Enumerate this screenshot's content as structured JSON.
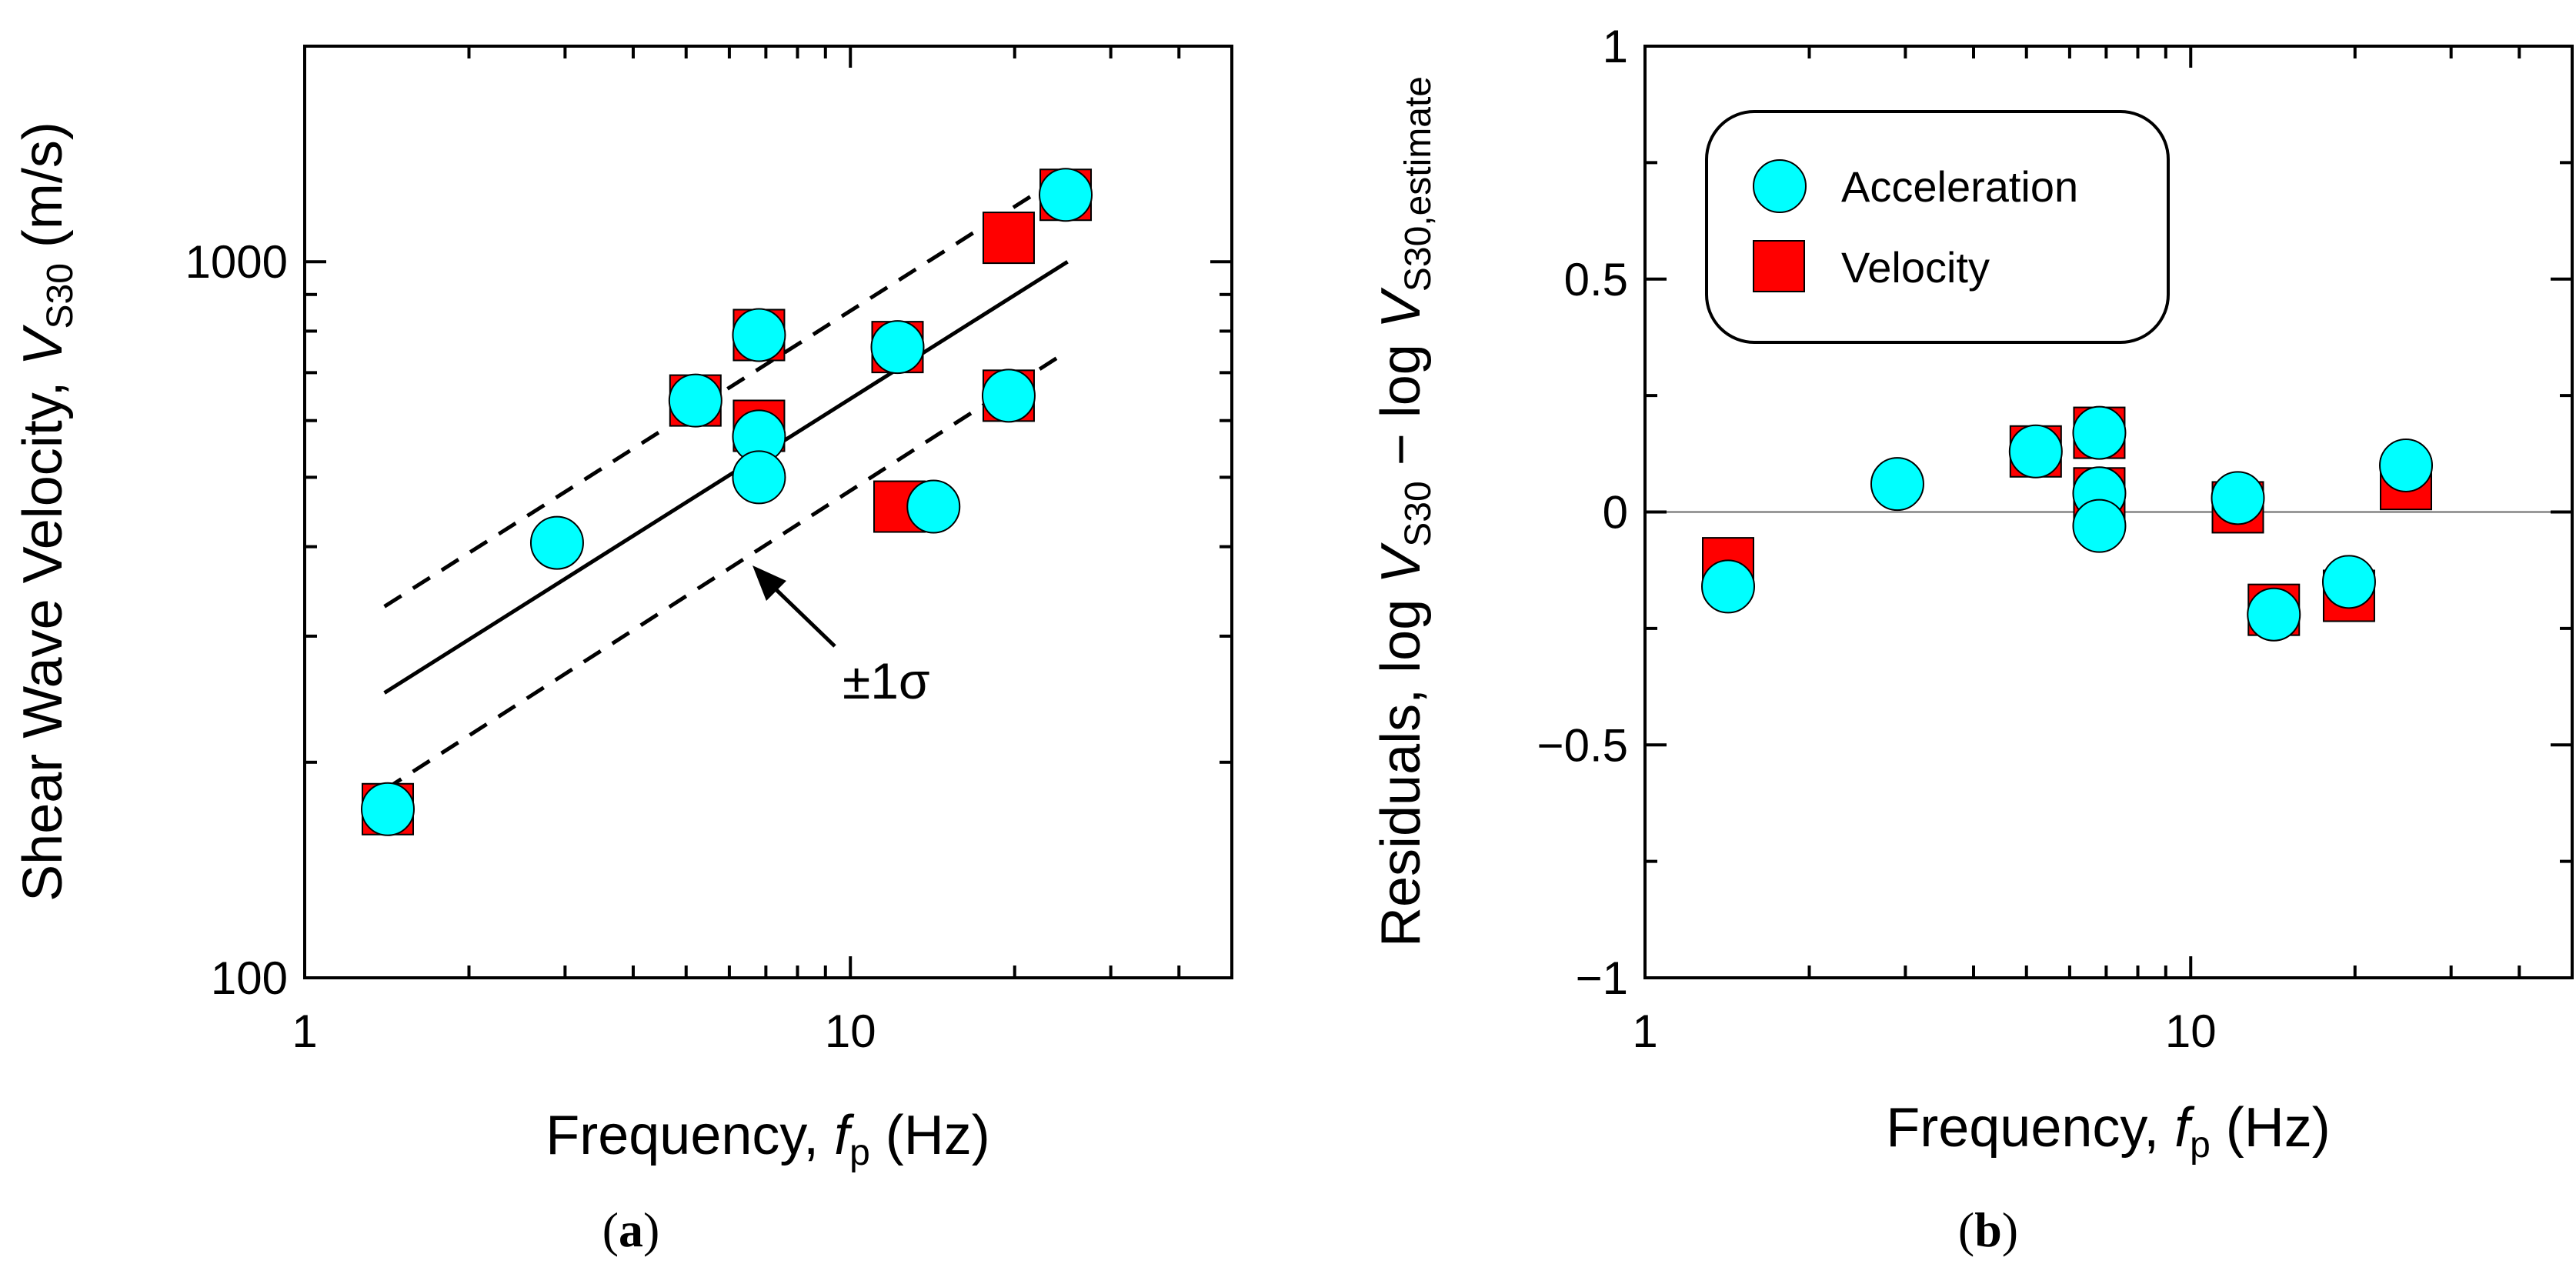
{
  "chart_data": [
    {
      "id": "a",
      "type": "scatter",
      "panel_label_open": "(",
      "panel_label_letter": "a",
      "panel_label_close": ")",
      "xscale": "log",
      "yscale": "log",
      "xlim": [
        1,
        50
      ],
      "ylim": [
        100,
        2000
      ],
      "xlabel_pre": "Frequency, ",
      "xlabel_var": "f",
      "xlabel_sub": "p",
      "xlabel_post": " (Hz)",
      "ylabel_pre": "Shear Wave Velocity,  ",
      "ylabel_var": "V",
      "ylabel_sub": "S30",
      "ylabel_post": " (m/s)",
      "x_ticks": [
        {
          "value": 1,
          "label": "1"
        },
        {
          "value": 10,
          "label": "10"
        }
      ],
      "y_ticks": [
        {
          "value": 100,
          "label": "100"
        },
        {
          "value": 1000,
          "label": "1000"
        }
      ],
      "annotation": "±1σ",
      "fit_line": {
        "x": [
          1.4,
          25
        ],
        "y": [
          250,
          1000
        ]
      },
      "sigma_upper": {
        "x": [
          1.4,
          25
        ],
        "y": [
          330,
          1330
        ]
      },
      "sigma_lower": {
        "x": [
          1.4,
          25
        ],
        "y": [
          183,
          750
        ]
      },
      "series": [
        {
          "name": "Velocity",
          "marker": "square",
          "color": "#ff0000",
          "x": [
            1.42,
            5.2,
            6.8,
            6.8,
            12.2,
            12.3,
            19.5,
            24.8,
            19.5
          ],
          "y": [
            172,
            640,
            790,
            590,
            760,
            455,
            650,
            1240,
            1080
          ]
        },
        {
          "name": "Acceleration",
          "marker": "circle",
          "color": "#00ffff",
          "x": [
            1.42,
            2.9,
            5.2,
            6.8,
            6.8,
            6.8,
            12.2,
            14.2,
            19.5,
            24.8
          ],
          "y": [
            172,
            405,
            640,
            790,
            570,
            500,
            760,
            455,
            650,
            1240
          ]
        }
      ]
    },
    {
      "id": "b",
      "type": "scatter",
      "panel_label_open": "(",
      "panel_label_letter": "b",
      "panel_label_close": ")",
      "xscale": "log",
      "yscale": "linear",
      "xlim": [
        1,
        50
      ],
      "ylim": [
        -1,
        1
      ],
      "xlabel_pre": "Frequency, ",
      "xlabel_var": "f",
      "xlabel_sub": "p",
      "xlabel_post": " (Hz)",
      "ylabel_pre": "Residuals, log ",
      "ylabel_var": "V",
      "ylabel_sub": "S30",
      "ylabel_mid": " − log ",
      "ylabel_var2": "V",
      "ylabel_sub2": "S30,estimate",
      "x_ticks": [
        {
          "value": 1,
          "label": "1"
        },
        {
          "value": 10,
          "label": "10"
        }
      ],
      "y_ticks": [
        {
          "value": -1,
          "label": "−1"
        },
        {
          "value": -0.5,
          "label": "−0.5"
        },
        {
          "value": 0,
          "label": "0"
        },
        {
          "value": 0.5,
          "label": "0.5"
        },
        {
          "value": 1,
          "label": "1"
        }
      ],
      "zero_line": 0,
      "legend": {
        "placement": "upper-left",
        "entries": [
          "Acceleration",
          "Velocity"
        ]
      },
      "series": [
        {
          "name": "Velocity",
          "marker": "square",
          "color": "#ff0000",
          "x": [
            1.42,
            5.2,
            6.8,
            6.8,
            12.2,
            14.2,
            19.5,
            24.8
          ],
          "y": [
            -0.11,
            0.13,
            0.17,
            0.04,
            0.01,
            -0.21,
            -0.18,
            0.06
          ]
        },
        {
          "name": "Acceleration",
          "marker": "circle",
          "color": "#00ffff",
          "x": [
            1.42,
            2.9,
            5.2,
            6.8,
            6.8,
            6.8,
            12.2,
            14.2,
            19.5,
            24.8
          ],
          "y": [
            -0.16,
            0.06,
            0.13,
            0.17,
            0.04,
            -0.03,
            0.03,
            -0.22,
            -0.15,
            0.1
          ]
        }
      ]
    }
  ]
}
